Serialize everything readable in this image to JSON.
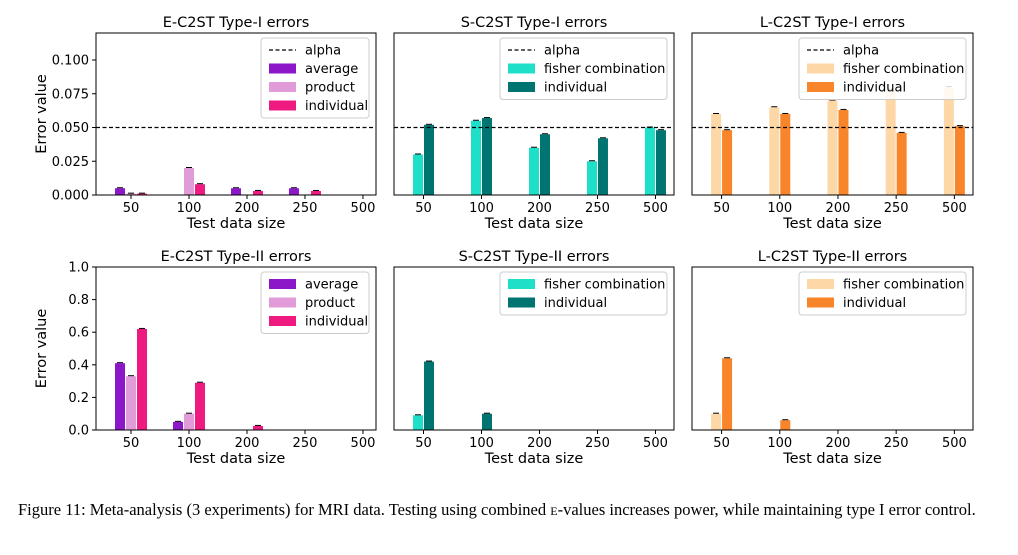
{
  "chart_data": [
    {
      "type": "bar",
      "title": "E-C2ST Type-I errors",
      "xlabel": "Test data size",
      "ylabel": "Error value",
      "categories": [
        "50",
        "100",
        "200",
        "250",
        "500"
      ],
      "ylim": [
        0,
        0.12
      ],
      "yticks": [
        "0.000",
        "0.025",
        "0.050",
        "0.075",
        "0.100"
      ],
      "ytick_values": [
        0,
        0.025,
        0.05,
        0.075,
        0.1
      ],
      "alpha": 0.05,
      "alpha_label": "alpha",
      "legend_position": "top-right",
      "series": [
        {
          "name": "average",
          "color": "#8b17c9",
          "values": [
            0.005,
            0,
            0.005,
            0.005,
            0
          ]
        },
        {
          "name": "product",
          "color": "#e29bd9",
          "values": [
            0.001,
            0.02,
            0,
            0,
            0
          ]
        },
        {
          "name": "individual",
          "color": "#ef1a80",
          "values": [
            0.001,
            0.008,
            0.003,
            0.003,
            0
          ]
        }
      ]
    },
    {
      "type": "bar",
      "title": "S-C2ST Type-I errors",
      "xlabel": "Test data size",
      "ylabel": "",
      "categories": [
        "50",
        "100",
        "200",
        "250",
        "500"
      ],
      "ylim": [
        0,
        0.12
      ],
      "yticks": [],
      "ytick_values": [],
      "alpha": 0.05,
      "alpha_label": "alpha",
      "legend_position": "top-right",
      "series": [
        {
          "name": "fisher combination",
          "color": "#1ee0c9",
          "values": [
            0.03,
            0.055,
            0.035,
            0.025,
            0.05
          ]
        },
        {
          "name": "individual",
          "color": "#007470",
          "values": [
            0.052,
            0.057,
            0.045,
            0.042,
            0.048
          ]
        }
      ]
    },
    {
      "type": "bar",
      "title": "L-C2ST Type-I errors",
      "xlabel": "Test data size",
      "ylabel": "",
      "categories": [
        "50",
        "100",
        "200",
        "250",
        "500"
      ],
      "ylim": [
        0,
        0.12
      ],
      "yticks": [],
      "ytick_values": [],
      "alpha": 0.05,
      "alpha_label": "alpha",
      "legend_position": "top-right",
      "series": [
        {
          "name": "fisher combination",
          "color": "#fdd7a6",
          "values": [
            0.06,
            0.065,
            0.07,
            0.078,
            0.08
          ]
        },
        {
          "name": "individual",
          "color": "#f9852a",
          "values": [
            0.048,
            0.06,
            0.063,
            0.046,
            0.051
          ]
        }
      ]
    },
    {
      "type": "bar",
      "title": "E-C2ST Type-II errors",
      "xlabel": "Test data size",
      "ylabel": "Error value",
      "categories": [
        "50",
        "100",
        "200",
        "250",
        "500"
      ],
      "ylim": [
        0,
        1.0
      ],
      "yticks": [
        "0.0",
        "0.2",
        "0.4",
        "0.6",
        "0.8",
        "1.0"
      ],
      "ytick_values": [
        0,
        0.2,
        0.4,
        0.6,
        0.8,
        1.0
      ],
      "legend_position": "top-right",
      "series": [
        {
          "name": "average",
          "color": "#8b17c9",
          "values": [
            0.41,
            0.05,
            0,
            0,
            0
          ]
        },
        {
          "name": "product",
          "color": "#e29bd9",
          "values": [
            0.33,
            0.1,
            0,
            0,
            0
          ]
        },
        {
          "name": "individual",
          "color": "#ef1a80",
          "values": [
            0.62,
            0.29,
            0.025,
            0,
            0
          ]
        }
      ]
    },
    {
      "type": "bar",
      "title": "S-C2ST Type-II errors",
      "xlabel": "Test data size",
      "ylabel": "",
      "categories": [
        "50",
        "100",
        "200",
        "250",
        "500"
      ],
      "ylim": [
        0,
        1.0
      ],
      "yticks": [],
      "ytick_values": [],
      "legend_position": "top-right",
      "series": [
        {
          "name": "fisher combination",
          "color": "#1ee0c9",
          "values": [
            0.09,
            0,
            0,
            0,
            0
          ]
        },
        {
          "name": "individual",
          "color": "#007470",
          "values": [
            0.42,
            0.1,
            0,
            0,
            0
          ]
        }
      ]
    },
    {
      "type": "bar",
      "title": "L-C2ST Type-II errors",
      "xlabel": "Test data size",
      "ylabel": "",
      "categories": [
        "50",
        "100",
        "200",
        "250",
        "500"
      ],
      "ylim": [
        0,
        1.0
      ],
      "yticks": [],
      "ytick_values": [],
      "legend_position": "top-right",
      "series": [
        {
          "name": "fisher combination",
          "color": "#fdd7a6",
          "values": [
            0.1,
            0,
            0,
            0,
            0
          ]
        },
        {
          "name": "individual",
          "color": "#f9852a",
          "values": [
            0.44,
            0.06,
            0,
            0,
            0
          ]
        }
      ]
    }
  ],
  "caption": {
    "before": "Figure 11: Meta-analysis (3 experiments) for MRI data. Testing using combined ",
    "emph": "e",
    "after": "-values increases power, while maintaining type I error control."
  }
}
